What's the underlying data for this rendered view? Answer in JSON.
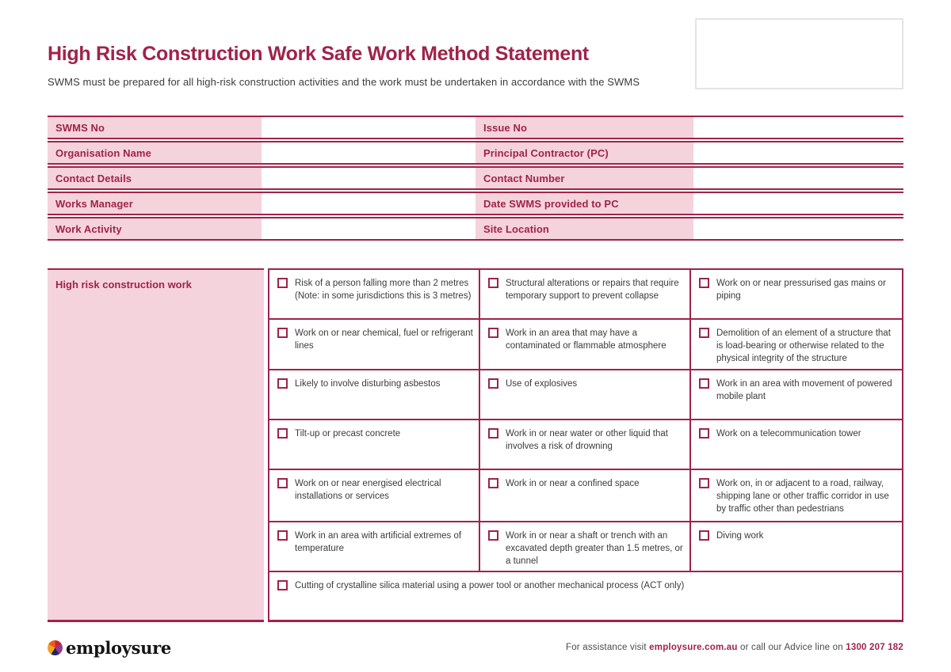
{
  "colors": {
    "maroon": "#A02349",
    "pink": "#F5D3DD",
    "border_light": "#E4E4E4",
    "text_dark": "#3B3B3B",
    "footer_text": "#4A4A4A",
    "logo_black": "#151515"
  },
  "page": {
    "title": "High Risk Construction Work Safe Work Method Statement",
    "intro": "SWMS must be prepared for all high-risk construction activities and the work must be undertaken in accordance with the SWMS"
  },
  "details_table": {
    "rows": [
      {
        "left_label": "SWMS No",
        "left_value": "",
        "right_label": "Issue No",
        "right_value": ""
      },
      {
        "left_label": "Organisation Name",
        "left_value": "",
        "right_label": "Principal Contractor (PC)",
        "right_value": ""
      },
      {
        "left_label": "Contact Details",
        "left_value": "",
        "right_label": "Contact Number",
        "right_value": ""
      },
      {
        "left_label": "Works Manager",
        "left_value": "",
        "right_label": "Date SWMS provided to PC",
        "right_value": ""
      },
      {
        "left_label": "Work Activity",
        "left_value": "",
        "right_label": "Site Location",
        "right_value": ""
      }
    ]
  },
  "hrcw": {
    "section_label": "High risk construction work",
    "items": [
      {
        "label": "Risk of a person falling more than 2 metres (Note: in some jurisdictions this is 3 metres)",
        "checked": false
      },
      {
        "label": "Structural alterations or repairs that require temporary support to prevent collapse",
        "checked": false
      },
      {
        "label": "Work on or near pressurised gas mains or piping",
        "checked": false
      },
      {
        "label": "Work on or near chemical, fuel or refrigerant lines",
        "checked": false
      },
      {
        "label": "Work in an area that may have a contaminated or flammable atmosphere",
        "checked": false
      },
      {
        "label": "Demolition of an element of a structure that is load-bearing or otherwise related to the physical integrity of the structure",
        "checked": false
      },
      {
        "label": "Likely to involve disturbing asbestos",
        "checked": false
      },
      {
        "label": "Use of explosives",
        "checked": false
      },
      {
        "label": "Work in an area with movement of powered mobile plant",
        "checked": false
      },
      {
        "label": "Tilt-up or precast concrete",
        "checked": false
      },
      {
        "label": "Work in or near water or other liquid that involves a risk of drowning",
        "checked": false
      },
      {
        "label": "Work on a telecommunication tower",
        "checked": false
      },
      {
        "label": "Work on or near energised electrical installations or services",
        "checked": false
      },
      {
        "label": "Work in or near a confined space",
        "checked": false
      },
      {
        "label": "Work on, in or adjacent to a road, railway, shipping lane or other traffic corridor in use by traffic other than pedestrians",
        "checked": false
      },
      {
        "label": "Work in an area with artificial extremes of temperature",
        "checked": false
      },
      {
        "label": "Work in or near a shaft or trench with an excavated depth greater than 1.5 metres, or a tunnel",
        "checked": false
      },
      {
        "label": "Diving work",
        "checked": false
      },
      {
        "label": "Cutting of crystalline silica material using a power tool or another mechanical process (ACT only)",
        "checked": false
      }
    ]
  },
  "footer": {
    "logo_text": "employsure",
    "assistance_prefix": "For assistance visit ",
    "website": "employsure.com.au",
    "assistance_middle": " or call our Advice line on ",
    "phone": "1300 207 182"
  }
}
